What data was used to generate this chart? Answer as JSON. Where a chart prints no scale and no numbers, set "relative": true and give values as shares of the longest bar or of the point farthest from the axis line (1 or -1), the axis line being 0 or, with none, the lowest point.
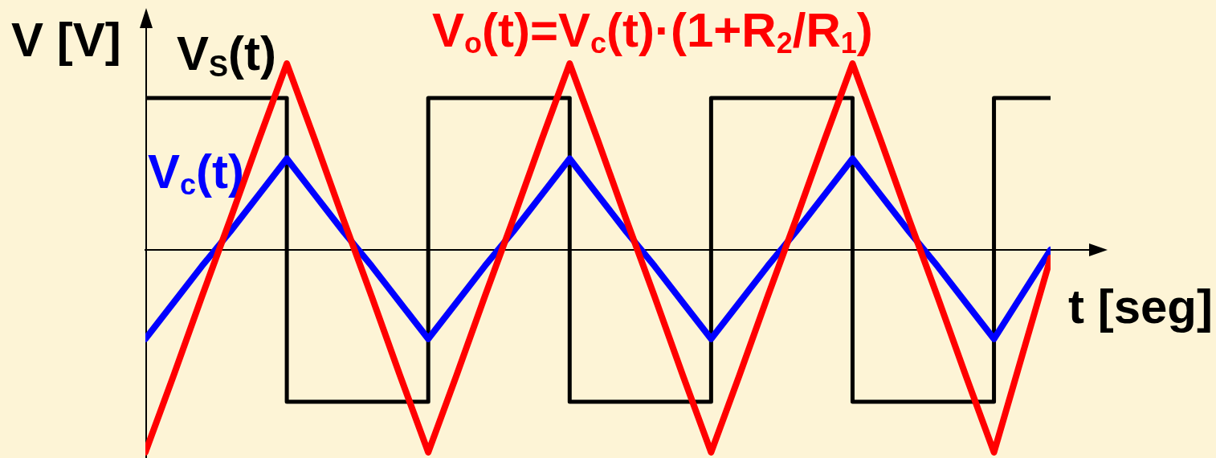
{
  "chart_data": {
    "type": "line",
    "xlabel": "t [seg]",
    "ylabel": "V [V]",
    "relative": true,
    "marker": "none",
    "categories": [
      null,
      null,
      null,
      null,
      null,
      null,
      null,
      null,
      null,
      null,
      null,
      null,
      null,
      null,
      null,
      null,
      null,
      null,
      null,
      null,
      null,
      null,
      null,
      null,
      null,
      null,
      null,
      null,
      null,
      null,
      null,
      null,
      null
    ],
    "series": [
      {
        "name": "V$_{S}$(t)",
        "type": "step",
        "color": "#000000",
        "values": [
          0.75,
          0.75,
          0.75,
          0.75,
          0.75,
          -0.75,
          -0.75,
          -0.75,
          -0.75,
          -0.75,
          0.75,
          0.75,
          0.75,
          0.75,
          0.75,
          -0.75,
          -0.75,
          -0.75,
          -0.75,
          -0.75,
          0.75,
          0.75,
          0.75,
          0.75,
          0.75,
          -0.75,
          -0.75,
          -0.75,
          -0.75,
          -0.75,
          0.75,
          0.75,
          0.75
        ]
      },
      {
        "name": "V$_{c}$(t)",
        "color": "#0000ff",
        "values": [
          -0.44,
          -0.26,
          -0.08,
          0.09,
          0.27,
          0.45,
          0.27,
          0.09,
          -0.08,
          -0.26,
          -0.44,
          -0.26,
          -0.08,
          0.09,
          0.27,
          0.45,
          0.27,
          0.09,
          -0.08,
          -0.26,
          -0.44,
          -0.26,
          -0.08,
          0.09,
          0.27,
          0.45,
          0.27,
          0.09,
          -0.08,
          -0.26,
          -0.44,
          -0.22,
          0
        ]
      },
      {
        "name": "V$_{o}$(t)=V$_{c}$(t)·(1+R$_{2}$/R$_{1}$)",
        "color": "#ff0000",
        "values": [
          -1,
          -0.62,
          -0.23,
          0.15,
          0.54,
          0.92,
          0.54,
          0.15,
          -0.23,
          -0.62,
          -1,
          -0.62,
          -0.23,
          0.15,
          0.54,
          0.92,
          0.54,
          0.15,
          -0.23,
          -0.62,
          -1,
          -0.62,
          -0.23,
          0.15,
          0.54,
          0.92,
          0.54,
          0.15,
          -0.23,
          -0.62,
          -1,
          -0.52,
          -0.04
        ]
      }
    ]
  }
}
